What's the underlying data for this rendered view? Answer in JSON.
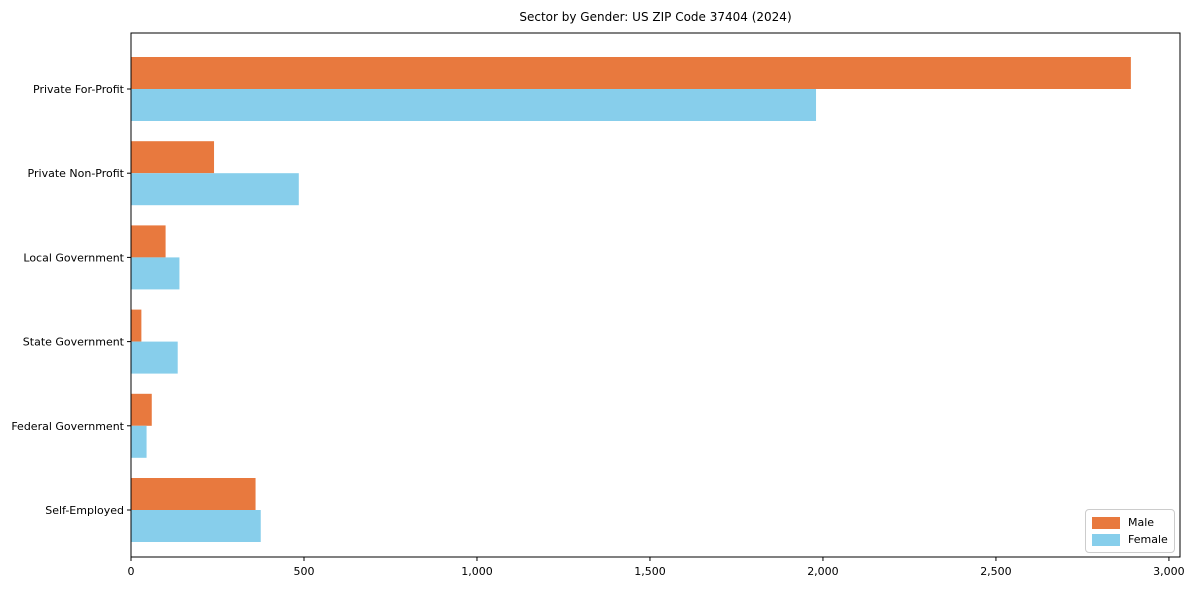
{
  "chart_data": {
    "type": "bar",
    "orientation": "horizontal",
    "title": "Sector by Gender: US ZIP Code 37404 (2024)",
    "xlabel": "",
    "ylabel": "",
    "categories": [
      "Private For-Profit",
      "Private Non-Profit",
      "Local Government",
      "State Government",
      "Federal Government",
      "Self-Employed"
    ],
    "series": [
      {
        "name": "Male",
        "color": "#E8793E",
        "values": [
          2890,
          240,
          100,
          30,
          60,
          360
        ]
      },
      {
        "name": "Female",
        "color": "#87CEEB",
        "values": [
          1980,
          485,
          140,
          135,
          45,
          375
        ]
      }
    ],
    "xlim": [
      0,
      3032
    ],
    "xticks": [
      0,
      500,
      1000,
      1500,
      2000,
      2500,
      3000
    ],
    "xtick_labels": [
      "0",
      "500",
      "1,000",
      "1,500",
      "2,000",
      "2,500",
      "3,000"
    ],
    "grid": false,
    "legend_position": "lower right",
    "colors": {
      "axis": "#000000",
      "text": "#000000",
      "legend_border": "#CCCCCC",
      "background": "#FFFFFF"
    }
  }
}
